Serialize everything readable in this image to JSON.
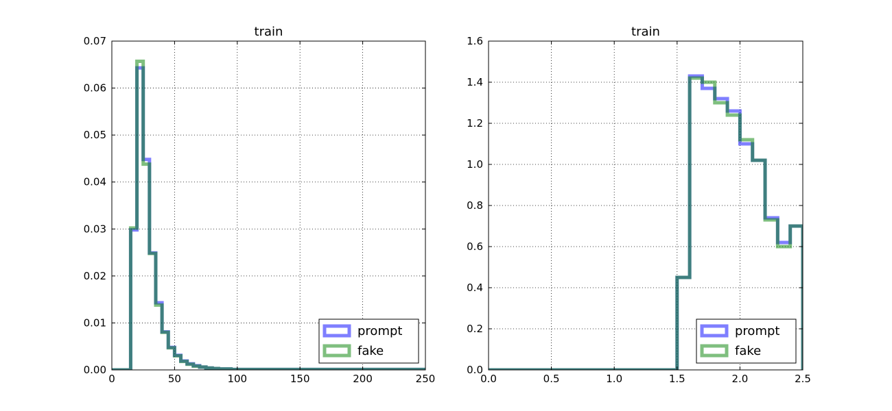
{
  "chart_data": [
    {
      "type": "step",
      "title": "train",
      "xlabel": "",
      "ylabel": "",
      "xlim": [
        0,
        250
      ],
      "ylim": [
        0,
        0.07
      ],
      "xticks": [
        0,
        50,
        100,
        150,
        200,
        250
      ],
      "yticks": [
        0.0,
        0.01,
        0.02,
        0.03,
        0.04,
        0.05,
        0.06,
        0.07
      ],
      "x_tick_labels": [
        "0",
        "50",
        "100",
        "150",
        "200",
        "250"
      ],
      "y_tick_labels": [
        "0.00",
        "0.01",
        "0.02",
        "0.03",
        "0.04",
        "0.05",
        "0.06",
        "0.07"
      ],
      "grid": true,
      "legend_position": "lower-right",
      "bin_edges": [
        0,
        5,
        10,
        15,
        20,
        25,
        30,
        35,
        40,
        45,
        50,
        55,
        60,
        65,
        70,
        75,
        80,
        85,
        90,
        95,
        100,
        105,
        250
      ],
      "series": [
        {
          "name": "prompt",
          "color": "#0000ff",
          "values": [
            0,
            0,
            0,
            0.0298,
            0.0643,
            0.0448,
            0.0249,
            0.0143,
            0.0081,
            0.0048,
            0.0031,
            0.0019,
            0.0013,
            0.0009,
            0.0006,
            0.0004,
            0.0003,
            0.0002,
            0.0002,
            0.0001,
            0.0001,
            0.0001
          ]
        },
        {
          "name": "fake",
          "color": "#008000",
          "values": [
            0,
            0,
            0,
            0.0302,
            0.0657,
            0.0438,
            0.0248,
            0.0138,
            0.008,
            0.0047,
            0.003,
            0.0018,
            0.0012,
            0.0008,
            0.0006,
            0.0004,
            0.0003,
            0.0002,
            0.0002,
            0.0001,
            0.0001,
            0.0001
          ]
        }
      ]
    },
    {
      "type": "step",
      "title": "train",
      "xlabel": "",
      "ylabel": "",
      "xlim": [
        0,
        2.5
      ],
      "ylim": [
        0,
        1.6
      ],
      "xticks": [
        0,
        0.5,
        1.0,
        1.5,
        2.0,
        2.5
      ],
      "yticks": [
        0.0,
        0.2,
        0.4,
        0.6,
        0.8,
        1.0,
        1.2,
        1.4,
        1.6
      ],
      "x_tick_labels": [
        "0.0",
        "0.5",
        "1.0",
        "1.5",
        "2.0",
        "2.5"
      ],
      "y_tick_labels": [
        "0.0",
        "0.2",
        "0.4",
        "0.6",
        "0.8",
        "1.0",
        "1.2",
        "1.4",
        "1.6"
      ],
      "grid": true,
      "legend_position": "lower-right",
      "bin_edges": [
        0,
        1.5,
        1.6,
        1.7,
        1.8,
        1.9,
        2.0,
        2.1,
        2.2,
        2.3,
        2.4,
        2.5
      ],
      "series": [
        {
          "name": "prompt",
          "color": "#0000ff",
          "values": [
            0,
            0.45,
            1.43,
            1.37,
            1.32,
            1.26,
            1.1,
            1.02,
            0.74,
            0.62,
            0.7
          ]
        },
        {
          "name": "fake",
          "color": "#008000",
          "values": [
            0,
            0.45,
            1.42,
            1.4,
            1.3,
            1.24,
            1.12,
            1.02,
            0.73,
            0.6,
            0.7
          ]
        }
      ]
    }
  ]
}
